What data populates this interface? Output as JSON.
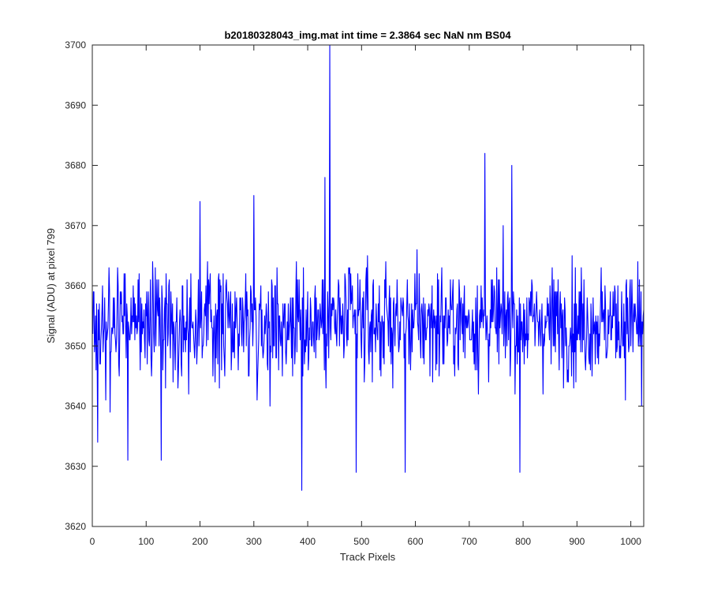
{
  "chart_data": {
    "type": "line",
    "title": "b20180328043_img.mat int time = 2.3864 sec  NaN nm BS04",
    "xlabel": "Track Pixels",
    "ylabel": "Signal (ADU) at pixel 799",
    "xlim": [
      0,
      1024
    ],
    "ylim": [
      3620,
      3700
    ],
    "xticks": [
      0,
      100,
      200,
      300,
      400,
      500,
      600,
      700,
      800,
      900,
      1000
    ],
    "yticks": [
      3620,
      3630,
      3640,
      3650,
      3660,
      3670,
      3680,
      3690,
      3700
    ],
    "grid": false,
    "legend": "none",
    "series": [
      {
        "color": "#0000ff",
        "x_start": 1,
        "x_step": 1,
        "noise_baseline": 3654,
        "noise_amplitude": 6,
        "count": 1024,
        "notable_points": [
          {
            "x": 10,
            "y": 3634
          },
          {
            "x": 66,
            "y": 3631
          },
          {
            "x": 128,
            "y": 3631
          },
          {
            "x": 200,
            "y": 3674
          },
          {
            "x": 300,
            "y": 3675
          },
          {
            "x": 389,
            "y": 3626
          },
          {
            "x": 432,
            "y": 3678
          },
          {
            "x": 441,
            "y": 3700
          },
          {
            "x": 490,
            "y": 3629
          },
          {
            "x": 581,
            "y": 3629
          },
          {
            "x": 729,
            "y": 3682
          },
          {
            "x": 779,
            "y": 3680
          },
          {
            "x": 794,
            "y": 3629
          },
          {
            "x": 1020,
            "y": 3640
          }
        ]
      }
    ]
  },
  "colors": {
    "line": "#0000ff",
    "axes": "#262626",
    "background": "#ffffff"
  }
}
